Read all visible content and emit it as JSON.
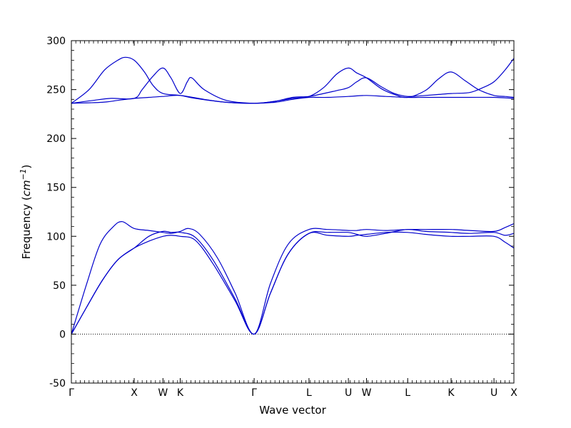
{
  "figure": {
    "background": "#ffffff",
    "axes_color": "#000000",
    "tick_label_color": "#000000"
  },
  "chart_data": {
    "type": "line",
    "title": "",
    "xlabel": "Wave vector",
    "ylabel": "Frequency (cm⁻¹)",
    "ylabel_parts": {
      "prefix": "Frequency (",
      "unit": "cm",
      "sup": "−1",
      "suffix": ")"
    },
    "xlim": [
      0,
      1
    ],
    "ylim": [
      -50,
      300
    ],
    "yticks": [
      -50,
      0,
      50,
      100,
      150,
      200,
      250,
      300
    ],
    "y_minor_step": 10,
    "x_minor_divisions": 100,
    "grid": false,
    "legend": "none",
    "line_color": "#0000cc",
    "zero_line": {
      "y": 0,
      "style": "dotted",
      "color": "#000000"
    },
    "xticks": {
      "positions": [
        0,
        0.142,
        0.207,
        0.246,
        0.413,
        0.537,
        0.626,
        0.667,
        0.76,
        0.858,
        0.955,
        1.0
      ],
      "labels": [
        "Γ",
        "X",
        "W",
        "K",
        "Γ",
        "L",
        "U",
        "W",
        "L",
        "K",
        "U",
        "X"
      ]
    },
    "series": [
      {
        "name": "acoustic-1",
        "points": [
          [
            0,
            0
          ],
          [
            0.035,
            28
          ],
          [
            0.07,
            55
          ],
          [
            0.105,
            76
          ],
          [
            0.142,
            88
          ],
          [
            0.175,
            95
          ],
          [
            0.207,
            100
          ],
          [
            0.225,
            101
          ],
          [
            0.246,
            100
          ],
          [
            0.28,
            96
          ],
          [
            0.32,
            72
          ],
          [
            0.37,
            34
          ],
          [
            0.413,
            0
          ],
          [
            0.45,
            42
          ],
          [
            0.49,
            82
          ],
          [
            0.537,
            103
          ],
          [
            0.58,
            101
          ],
          [
            0.626,
            100
          ],
          [
            0.645,
            101
          ],
          [
            0.667,
            102
          ],
          [
            0.71,
            104
          ],
          [
            0.76,
            104
          ],
          [
            0.8,
            102
          ],
          [
            0.858,
            100
          ],
          [
            0.9,
            100
          ],
          [
            0.955,
            100
          ],
          [
            0.98,
            94
          ],
          [
            1,
            88
          ]
        ]
      },
      {
        "name": "acoustic-2",
        "points": [
          [
            0,
            0
          ],
          [
            0.035,
            28
          ],
          [
            0.07,
            55
          ],
          [
            0.105,
            76
          ],
          [
            0.142,
            88
          ],
          [
            0.175,
            100
          ],
          [
            0.207,
            105
          ],
          [
            0.225,
            104
          ],
          [
            0.246,
            104
          ],
          [
            0.28,
            99
          ],
          [
            0.32,
            76
          ],
          [
            0.37,
            36
          ],
          [
            0.413,
            0
          ],
          [
            0.45,
            42
          ],
          [
            0.49,
            82
          ],
          [
            0.537,
            103
          ],
          [
            0.58,
            104
          ],
          [
            0.626,
            104
          ],
          [
            0.645,
            102
          ],
          [
            0.667,
            100
          ],
          [
            0.71,
            103
          ],
          [
            0.76,
            107
          ],
          [
            0.8,
            105
          ],
          [
            0.858,
            104
          ],
          [
            0.9,
            103
          ],
          [
            0.955,
            104
          ],
          [
            0.98,
            101
          ],
          [
            1,
            103
          ]
        ]
      },
      {
        "name": "acoustic-3",
        "points": [
          [
            0,
            0
          ],
          [
            0.035,
            52
          ],
          [
            0.065,
            92
          ],
          [
            0.095,
            110
          ],
          [
            0.115,
            115
          ],
          [
            0.142,
            108
          ],
          [
            0.175,
            106
          ],
          [
            0.207,
            104
          ],
          [
            0.225,
            103
          ],
          [
            0.246,
            105
          ],
          [
            0.265,
            108
          ],
          [
            0.29,
            102
          ],
          [
            0.33,
            78
          ],
          [
            0.37,
            42
          ],
          [
            0.413,
            0
          ],
          [
            0.45,
            52
          ],
          [
            0.49,
            92
          ],
          [
            0.537,
            107
          ],
          [
            0.58,
            107
          ],
          [
            0.626,
            106
          ],
          [
            0.645,
            106
          ],
          [
            0.667,
            107
          ],
          [
            0.71,
            106
          ],
          [
            0.76,
            107
          ],
          [
            0.8,
            107
          ],
          [
            0.858,
            107
          ],
          [
            0.9,
            106
          ],
          [
            0.955,
            105
          ],
          [
            0.98,
            109
          ],
          [
            1,
            113
          ]
        ]
      },
      {
        "name": "optical-1",
        "points": [
          [
            0,
            236
          ],
          [
            0.07,
            237
          ],
          [
            0.105,
            239
          ],
          [
            0.142,
            241
          ],
          [
            0.175,
            242
          ],
          [
            0.207,
            243
          ],
          [
            0.246,
            244
          ],
          [
            0.3,
            240
          ],
          [
            0.35,
            237
          ],
          [
            0.413,
            236
          ],
          [
            0.46,
            237
          ],
          [
            0.5,
            240
          ],
          [
            0.537,
            242
          ],
          [
            0.58,
            242
          ],
          [
            0.626,
            243
          ],
          [
            0.667,
            244
          ],
          [
            0.71,
            243
          ],
          [
            0.76,
            242
          ],
          [
            0.8,
            242
          ],
          [
            0.858,
            242
          ],
          [
            0.9,
            242
          ],
          [
            0.955,
            242
          ],
          [
            1,
            241
          ]
        ]
      },
      {
        "name": "optical-2",
        "points": [
          [
            0,
            236
          ],
          [
            0.05,
            239
          ],
          [
            0.09,
            241
          ],
          [
            0.142,
            241
          ],
          [
            0.16,
            250
          ],
          [
            0.185,
            264
          ],
          [
            0.207,
            272
          ],
          [
            0.225,
            262
          ],
          [
            0.246,
            246
          ],
          [
            0.262,
            258
          ],
          [
            0.272,
            262
          ],
          [
            0.3,
            250
          ],
          [
            0.35,
            239
          ],
          [
            0.413,
            236
          ],
          [
            0.46,
            238
          ],
          [
            0.5,
            241
          ],
          [
            0.537,
            243
          ],
          [
            0.57,
            252
          ],
          [
            0.6,
            266
          ],
          [
            0.626,
            272
          ],
          [
            0.645,
            267
          ],
          [
            0.667,
            262
          ],
          [
            0.7,
            251
          ],
          [
            0.73,
            245
          ],
          [
            0.76,
            242
          ],
          [
            0.8,
            249
          ],
          [
            0.83,
            261
          ],
          [
            0.858,
            268
          ],
          [
            0.89,
            259
          ],
          [
            0.92,
            250
          ],
          [
            0.955,
            244
          ],
          [
            0.98,
            243
          ],
          [
            1,
            242
          ]
        ]
      },
      {
        "name": "optical-3",
        "points": [
          [
            0,
            236
          ],
          [
            0.04,
            250
          ],
          [
            0.075,
            270
          ],
          [
            0.105,
            280
          ],
          [
            0.122,
            283
          ],
          [
            0.142,
            280
          ],
          [
            0.165,
            268
          ],
          [
            0.185,
            254
          ],
          [
            0.207,
            246
          ],
          [
            0.246,
            244
          ],
          [
            0.28,
            241
          ],
          [
            0.35,
            237
          ],
          [
            0.413,
            236
          ],
          [
            0.46,
            238
          ],
          [
            0.5,
            242
          ],
          [
            0.537,
            243
          ],
          [
            0.57,
            246
          ],
          [
            0.6,
            249
          ],
          [
            0.626,
            252
          ],
          [
            0.645,
            258
          ],
          [
            0.667,
            262
          ],
          [
            0.7,
            253
          ],
          [
            0.73,
            246
          ],
          [
            0.76,
            243
          ],
          [
            0.8,
            244
          ],
          [
            0.83,
            245
          ],
          [
            0.858,
            246
          ],
          [
            0.9,
            247
          ],
          [
            0.93,
            252
          ],
          [
            0.955,
            258
          ],
          [
            0.98,
            270
          ],
          [
            1,
            282
          ]
        ]
      }
    ]
  }
}
